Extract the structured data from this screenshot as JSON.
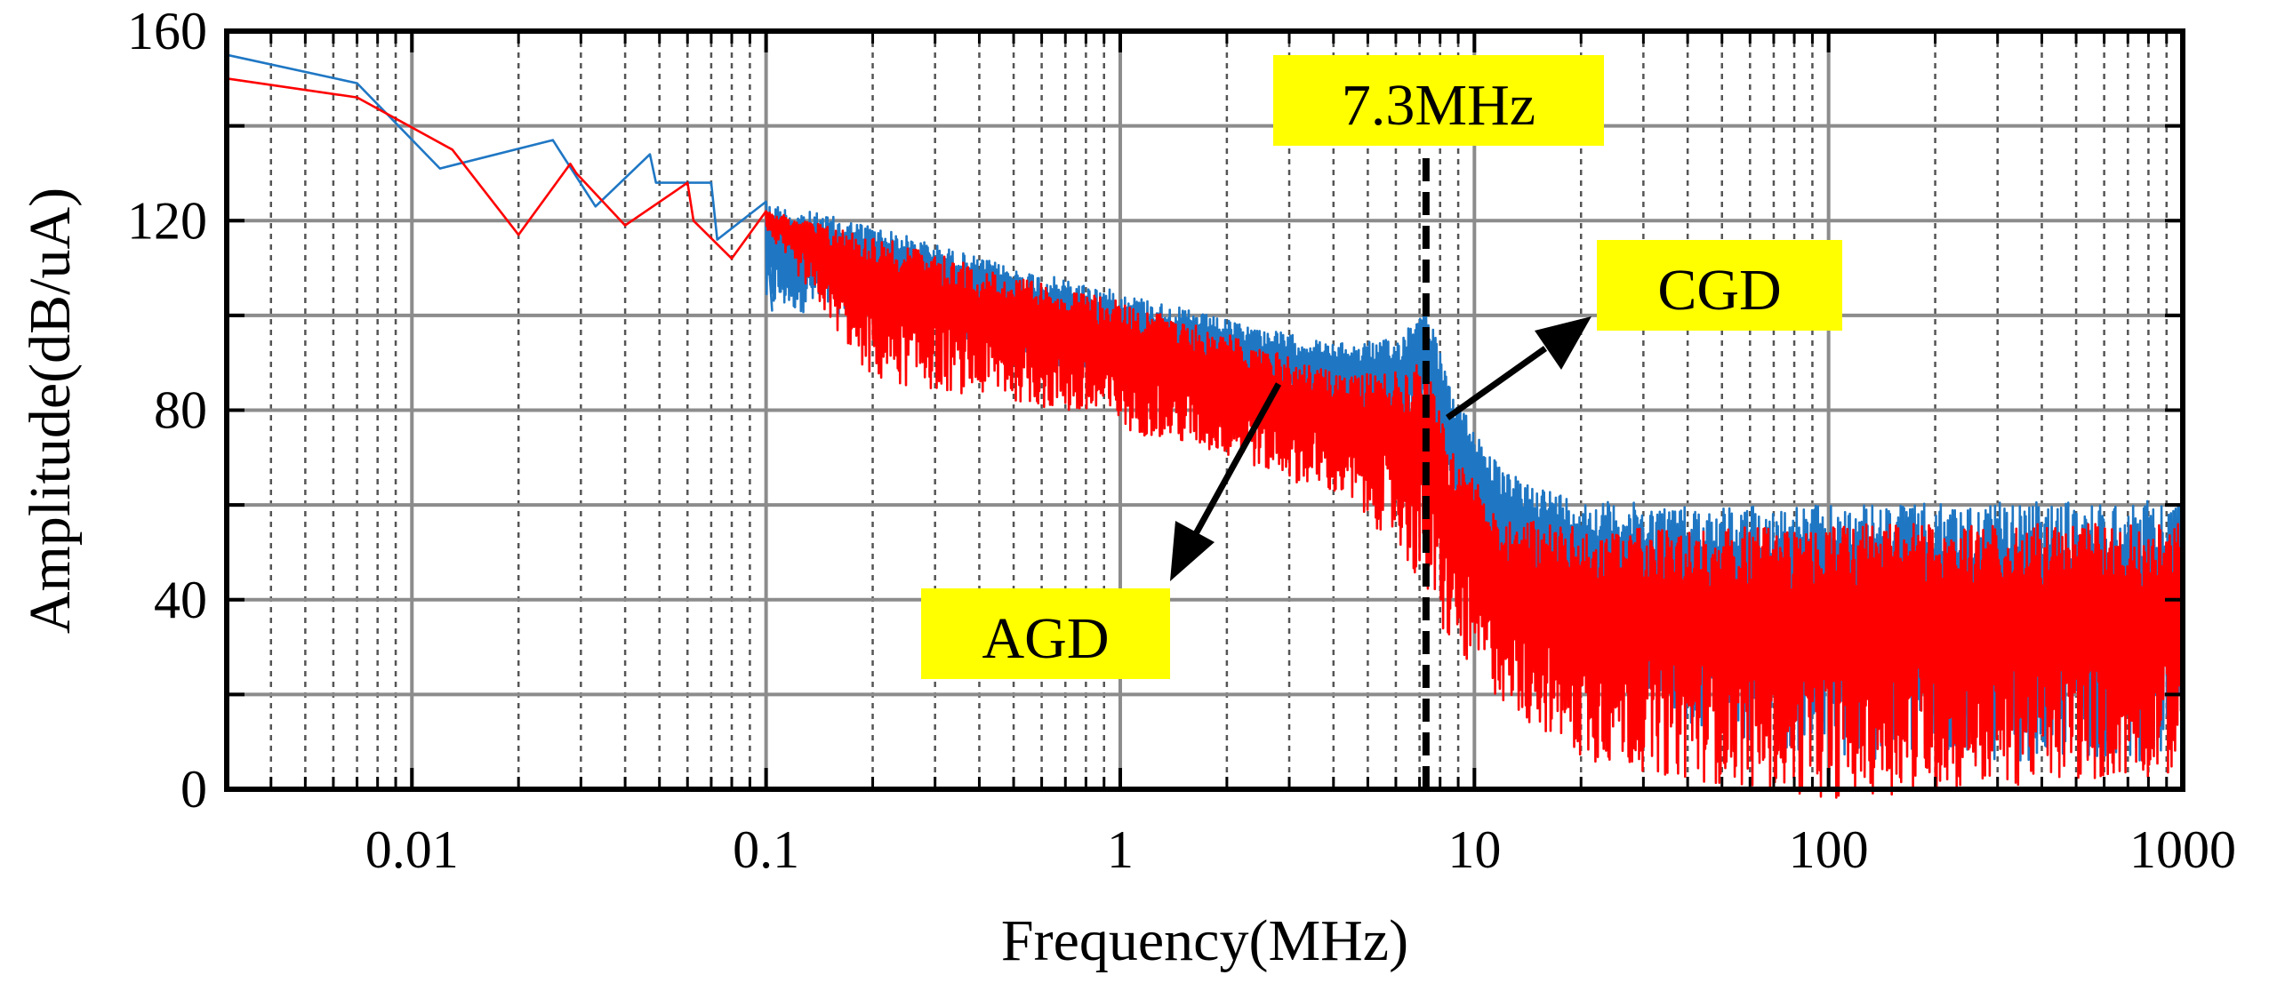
{
  "chart_data": {
    "type": "line",
    "title": "",
    "xlabel": "Frequency(MHz)",
    "ylabel": "Amplitude(dB/uA)",
    "xscale": "log",
    "xlim": [
      0.003,
      1000
    ],
    "ylim": [
      0,
      160
    ],
    "xticks": [
      0.01,
      0.1,
      1,
      10,
      100,
      1000
    ],
    "xtick_labels": [
      "0.01",
      "0.1",
      "1",
      "10",
      "100",
      "1000"
    ],
    "yticks": [
      0,
      40,
      80,
      120,
      160
    ],
    "ytick_labels": [
      "0",
      "40",
      "80",
      "120",
      "160"
    ],
    "grid": true,
    "colors": {
      "CGD": "#1f77c4",
      "AGD": "#ff0000",
      "highlight": "#ffff00"
    },
    "series": [
      {
        "name": "CGD",
        "envelope": {
          "x": [
            0.003,
            0.007,
            0.012,
            0.025,
            0.033,
            0.047,
            0.07,
            0.1,
            0.2,
            0.5,
            1,
            2,
            4,
            6,
            7.3,
            8.5,
            12,
            20,
            40,
            100,
            1000
          ],
          "upper": [
            155,
            149,
            131,
            137,
            123,
            134,
            128,
            124,
            119,
            110,
            105,
            99,
            94,
            95,
            103,
            85,
            67,
            61,
            60,
            60,
            61
          ],
          "lower": [
            155,
            149,
            131,
            135,
            123,
            128,
            116,
            101,
            100,
            92,
            86,
            82,
            76,
            70,
            80,
            60,
            40,
            30,
            14,
            6,
            6
          ]
        }
      },
      {
        "name": "AGD",
        "envelope": {
          "x": [
            0.003,
            0.007,
            0.013,
            0.02,
            0.028,
            0.04,
            0.06,
            0.08,
            0.1,
            0.2,
            0.5,
            1,
            2,
            4,
            6,
            7.3,
            8.5,
            12,
            20,
            40,
            100,
            1000
          ],
          "upper": [
            150,
            146,
            135,
            117,
            132,
            119,
            128,
            112,
            122,
            117,
            108,
            103,
            96,
            88,
            88,
            91,
            72,
            58,
            55,
            55,
            56,
            56
          ],
          "lower": [
            150,
            146,
            135,
            117,
            130,
            119,
            120,
            112,
            118,
            86,
            82,
            76,
            70,
            62,
            52,
            40,
            30,
            18,
            6,
            2,
            -2,
            3
          ]
        }
      }
    ],
    "annotations": [
      {
        "text": "7.3MHz",
        "x": 7.3,
        "type": "vline"
      },
      {
        "text": "CGD",
        "target_series": "CGD"
      },
      {
        "text": "AGD",
        "target_series": "AGD"
      }
    ]
  }
}
